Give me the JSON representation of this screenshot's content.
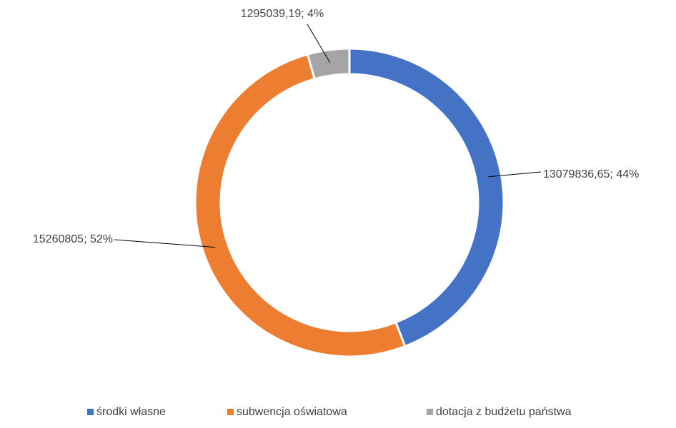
{
  "chart_data": {
    "type": "donut",
    "categories": [
      "środki własne",
      "subwencja oświatowa",
      "dotacja z budżetu państwa"
    ],
    "values": [
      13079836.65,
      15260805,
      1295039.19
    ],
    "value_labels": [
      "13079836,65; 44%",
      "15260805; 52%",
      "1295039,19; 4%"
    ],
    "colors": [
      "#4472c4",
      "#ed7d31",
      "#a5a5a5"
    ],
    "legend": "bottom"
  }
}
